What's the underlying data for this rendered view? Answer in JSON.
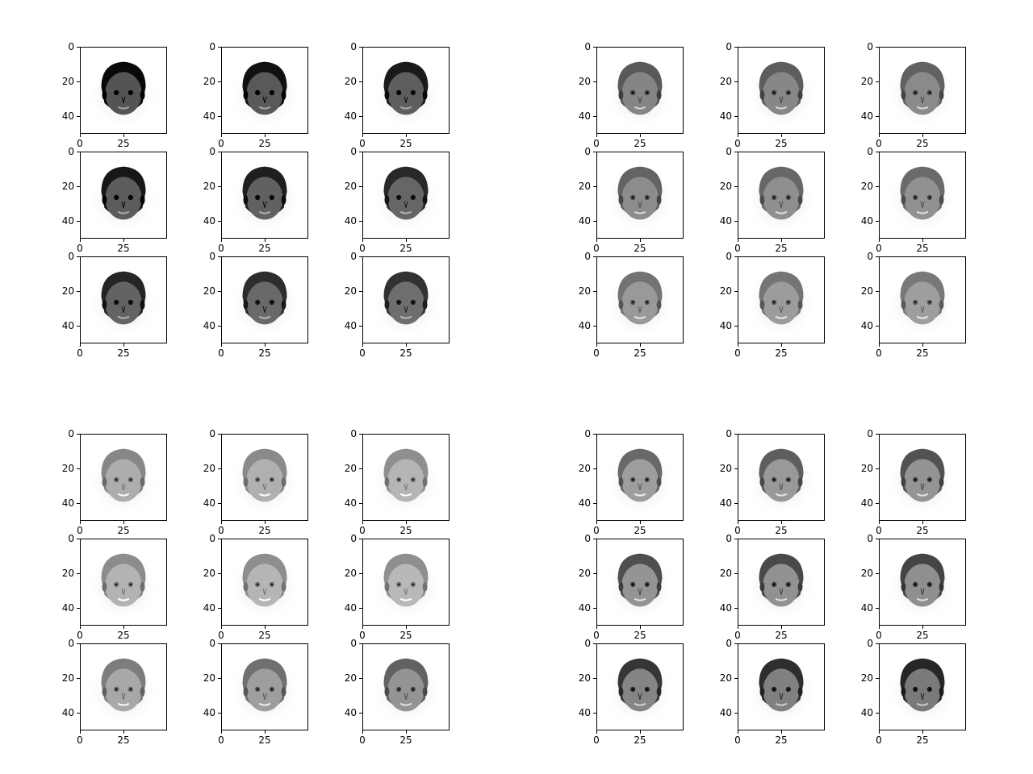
{
  "figure": {
    "description": "4 blocks of 3x3 grayscale face thumbnails with imshow axes",
    "axes": {
      "y_tick_labels": [
        "0",
        "20",
        "40"
      ],
      "x_tick_labels": [
        "0",
        "25"
      ]
    },
    "blocks": [
      {
        "id": "top-left",
        "base_gray": [
          0.33,
          0.35,
          0.37,
          0.36,
          0.38,
          0.4,
          0.39,
          0.41,
          0.43
        ],
        "hair": [
          0.7,
          0.65,
          0.6,
          0.6,
          0.55,
          0.5,
          0.5,
          0.45,
          0.45
        ]
      },
      {
        "id": "top-right",
        "base_gray": [
          0.52,
          0.53,
          0.54,
          0.55,
          0.56,
          0.57,
          0.6,
          0.61,
          0.62
        ],
        "hair": [
          0.2,
          0.18,
          0.16,
          0.16,
          0.15,
          0.14,
          0.12,
          0.12,
          0.12
        ]
      },
      {
        "id": "bottom-left",
        "base_gray": [
          0.68,
          0.69,
          0.71,
          0.7,
          0.71,
          0.72,
          0.66,
          0.62,
          0.58
        ],
        "hair": [
          0.12,
          0.12,
          0.12,
          0.13,
          0.14,
          0.15,
          0.2,
          0.25,
          0.3
        ]
      },
      {
        "id": "bottom-right",
        "base_gray": [
          0.62,
          0.6,
          0.58,
          0.58,
          0.57,
          0.56,
          0.52,
          0.5,
          0.48
        ],
        "hair": [
          0.35,
          0.45,
          0.55,
          0.6,
          0.65,
          0.7,
          0.75,
          0.8,
          0.85
        ]
      }
    ]
  }
}
